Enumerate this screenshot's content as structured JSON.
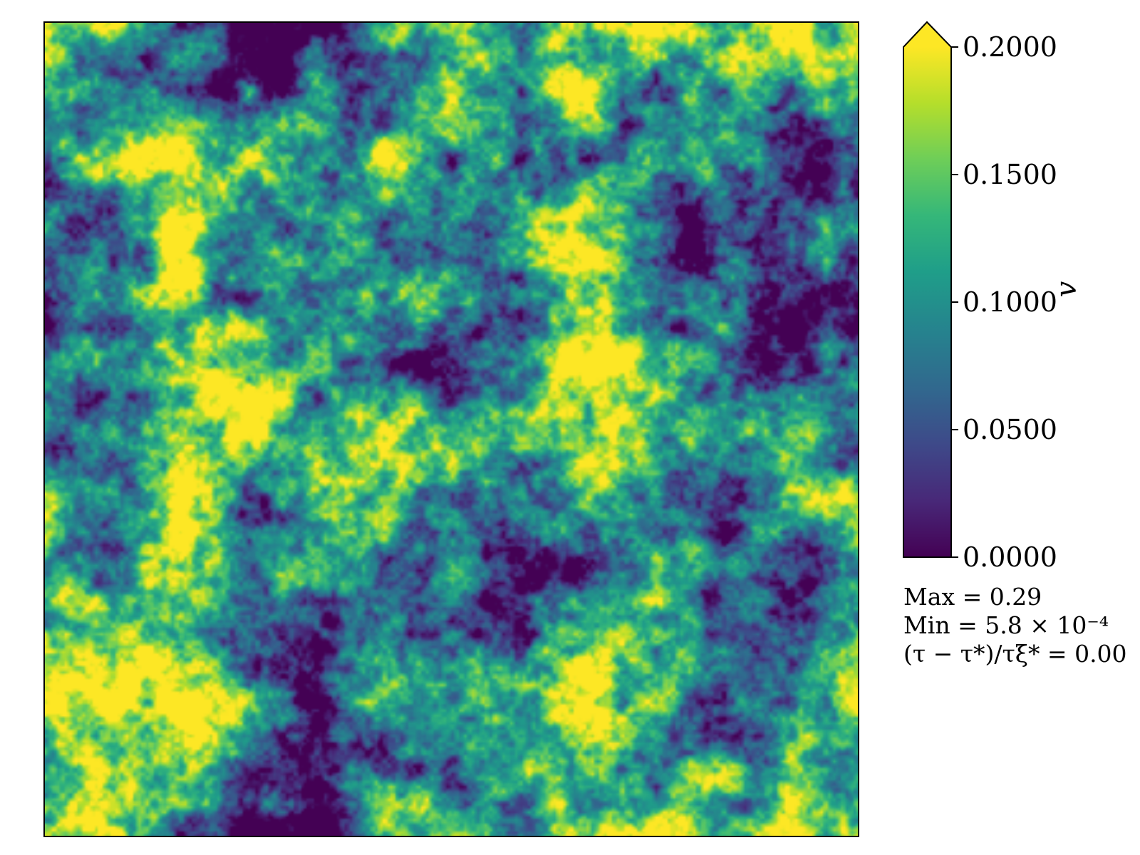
{
  "chart_data": {
    "type": "heatmap",
    "title": "",
    "xlabel": "",
    "ylabel": "",
    "colormap": "viridis",
    "colorbar": {
      "label": "v",
      "range": [
        0.0,
        0.2
      ],
      "extend": "max",
      "tick_values": [
        0.0,
        0.05,
        0.1,
        0.15,
        0.2
      ],
      "tick_labels": [
        "0.0000",
        "0.0500",
        "0.1000",
        "0.1500",
        "0.2000"
      ]
    },
    "annotations": {
      "max": "Max = 0.29",
      "min": "Min = 5.8 × 10⁻⁴",
      "time": "(τ − τ*)/τξ* = 0.00"
    },
    "field_stats": {
      "max": 0.29,
      "min": 0.00058,
      "time": 0.0
    }
  }
}
